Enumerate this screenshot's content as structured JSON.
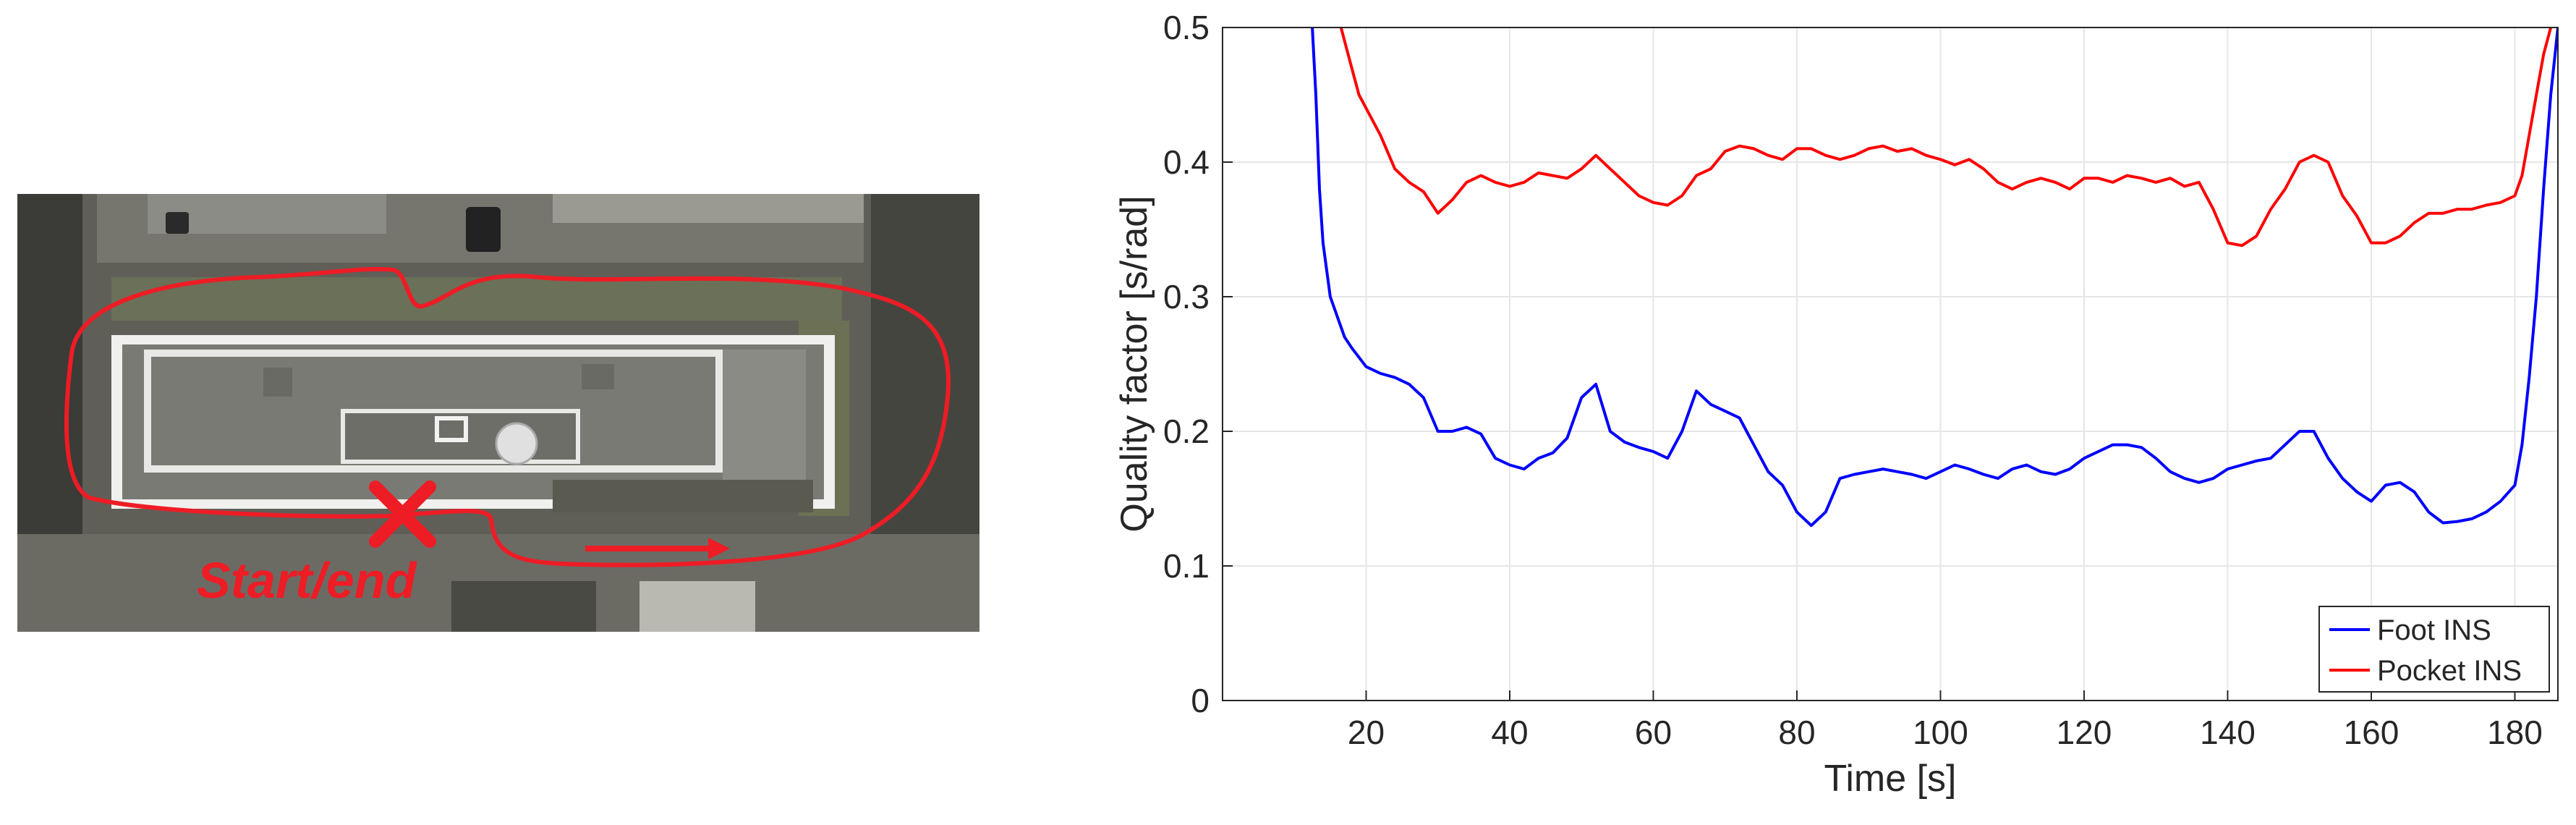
{
  "map": {
    "start_label": "Start/end",
    "colors": {
      "route": "#ee1c25",
      "ground": "#5a5a52"
    }
  },
  "chart_data": {
    "type": "line",
    "title": "",
    "xlabel": "Time [s]",
    "ylabel": "Quality factor [s/rad]",
    "xlim": [
      0,
      186
    ],
    "ylim": [
      0,
      0.5
    ],
    "xticks": [
      20,
      40,
      60,
      80,
      100,
      120,
      140,
      160,
      180
    ],
    "yticks": [
      0,
      0.1,
      0.2,
      0.3,
      0.4,
      0.5
    ],
    "xtick_labels": [
      "20",
      "40",
      "60",
      "80",
      "100",
      "120",
      "140",
      "160",
      "180"
    ],
    "ytick_labels": [
      "0",
      "0.1",
      "0.2",
      "0.3",
      "0.4",
      "0.5"
    ],
    "grid": true,
    "legend_position": "bottom-right",
    "series": [
      {
        "name": "Foot INS",
        "color": "#0000ff",
        "x": [
          12.5,
          13,
          13.5,
          14,
          15,
          16,
          17,
          18,
          20,
          22,
          24,
          26,
          28,
          30,
          32,
          34,
          36,
          38,
          40,
          42,
          44,
          46,
          48,
          50,
          52,
          54,
          56,
          58,
          60,
          62,
          64,
          66,
          68,
          70,
          72,
          74,
          76,
          78,
          80,
          82,
          84,
          86,
          88,
          90,
          92,
          94,
          96,
          98,
          100,
          102,
          104,
          106,
          108,
          110,
          112,
          114,
          116,
          118,
          120,
          122,
          124,
          126,
          128,
          130,
          132,
          134,
          136,
          138,
          140,
          142,
          144,
          146,
          148,
          150,
          152,
          154,
          156,
          158,
          160,
          162,
          164,
          166,
          168,
          170,
          172,
          174,
          176,
          178,
          180,
          181,
          182,
          183,
          184,
          185,
          186
        ],
        "y": [
          0.5,
          0.45,
          0.38,
          0.34,
          0.3,
          0.285,
          0.27,
          0.262,
          0.248,
          0.243,
          0.24,
          0.235,
          0.225,
          0.2,
          0.2,
          0.203,
          0.198,
          0.18,
          0.175,
          0.172,
          0.18,
          0.184,
          0.195,
          0.225,
          0.235,
          0.2,
          0.192,
          0.188,
          0.185,
          0.18,
          0.2,
          0.23,
          0.22,
          0.215,
          0.21,
          0.19,
          0.17,
          0.16,
          0.14,
          0.13,
          0.14,
          0.165,
          0.168,
          0.17,
          0.172,
          0.17,
          0.168,
          0.165,
          0.17,
          0.175,
          0.172,
          0.168,
          0.165,
          0.172,
          0.175,
          0.17,
          0.168,
          0.172,
          0.18,
          0.185,
          0.19,
          0.19,
          0.188,
          0.18,
          0.17,
          0.165,
          0.162,
          0.165,
          0.172,
          0.175,
          0.178,
          0.18,
          0.19,
          0.2,
          0.2,
          0.18,
          0.165,
          0.155,
          0.148,
          0.16,
          0.162,
          0.155,
          0.14,
          0.132,
          0.133,
          0.135,
          0.14,
          0.148,
          0.16,
          0.19,
          0.24,
          0.3,
          0.38,
          0.45,
          0.5
        ]
      },
      {
        "name": "Pocket INS",
        "color": "#ff0000",
        "x": [
          16.5,
          17,
          18,
          19,
          20,
          22,
          24,
          26,
          28,
          30,
          32,
          34,
          36,
          38,
          40,
          42,
          44,
          46,
          48,
          50,
          52,
          54,
          56,
          58,
          60,
          62,
          64,
          66,
          68,
          70,
          72,
          74,
          76,
          78,
          80,
          82,
          84,
          86,
          88,
          90,
          92,
          94,
          96,
          98,
          100,
          102,
          104,
          106,
          108,
          110,
          112,
          114,
          116,
          118,
          120,
          122,
          124,
          126,
          128,
          130,
          132,
          134,
          136,
          138,
          140,
          142,
          144,
          146,
          148,
          150,
          152,
          154,
          156,
          158,
          160,
          162,
          164,
          166,
          168,
          170,
          172,
          174,
          176,
          178,
          180,
          181,
          182,
          183,
          184,
          185
        ],
        "y": [
          0.5,
          0.49,
          0.47,
          0.45,
          0.44,
          0.42,
          0.395,
          0.385,
          0.378,
          0.362,
          0.372,
          0.385,
          0.39,
          0.385,
          0.382,
          0.385,
          0.392,
          0.39,
          0.388,
          0.395,
          0.405,
          0.395,
          0.385,
          0.375,
          0.37,
          0.368,
          0.375,
          0.39,
          0.395,
          0.408,
          0.412,
          0.41,
          0.405,
          0.402,
          0.41,
          0.41,
          0.405,
          0.402,
          0.405,
          0.41,
          0.412,
          0.408,
          0.41,
          0.405,
          0.402,
          0.398,
          0.402,
          0.395,
          0.385,
          0.38,
          0.385,
          0.388,
          0.385,
          0.38,
          0.388,
          0.388,
          0.385,
          0.39,
          0.388,
          0.385,
          0.388,
          0.382,
          0.385,
          0.365,
          0.34,
          0.338,
          0.345,
          0.365,
          0.38,
          0.4,
          0.405,
          0.4,
          0.375,
          0.36,
          0.34,
          0.34,
          0.345,
          0.355,
          0.362,
          0.362,
          0.365,
          0.365,
          0.368,
          0.37,
          0.375,
          0.39,
          0.42,
          0.45,
          0.48,
          0.5
        ]
      }
    ]
  }
}
